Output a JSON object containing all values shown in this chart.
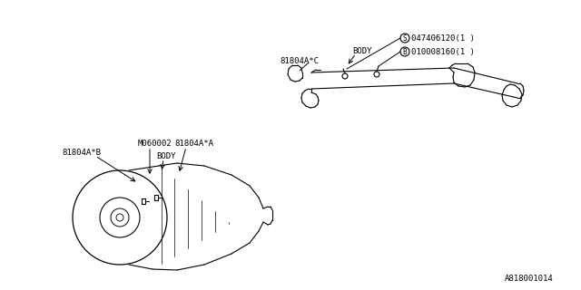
{
  "bg_color": "#ffffff",
  "line_color": "#000000",
  "part_number_bottom": "A818001014",
  "labels": {
    "body_top": "BODY",
    "part_C": "81804A*C",
    "part_S_circle": "S",
    "part_S": "047406120(1 )",
    "part_B_circle": "B",
    "part_B_label": "010008160(1 )",
    "part_A": "81804A*A",
    "part_B": "81804A*B",
    "part_M": "M060002",
    "body_bottom": "BODY"
  }
}
